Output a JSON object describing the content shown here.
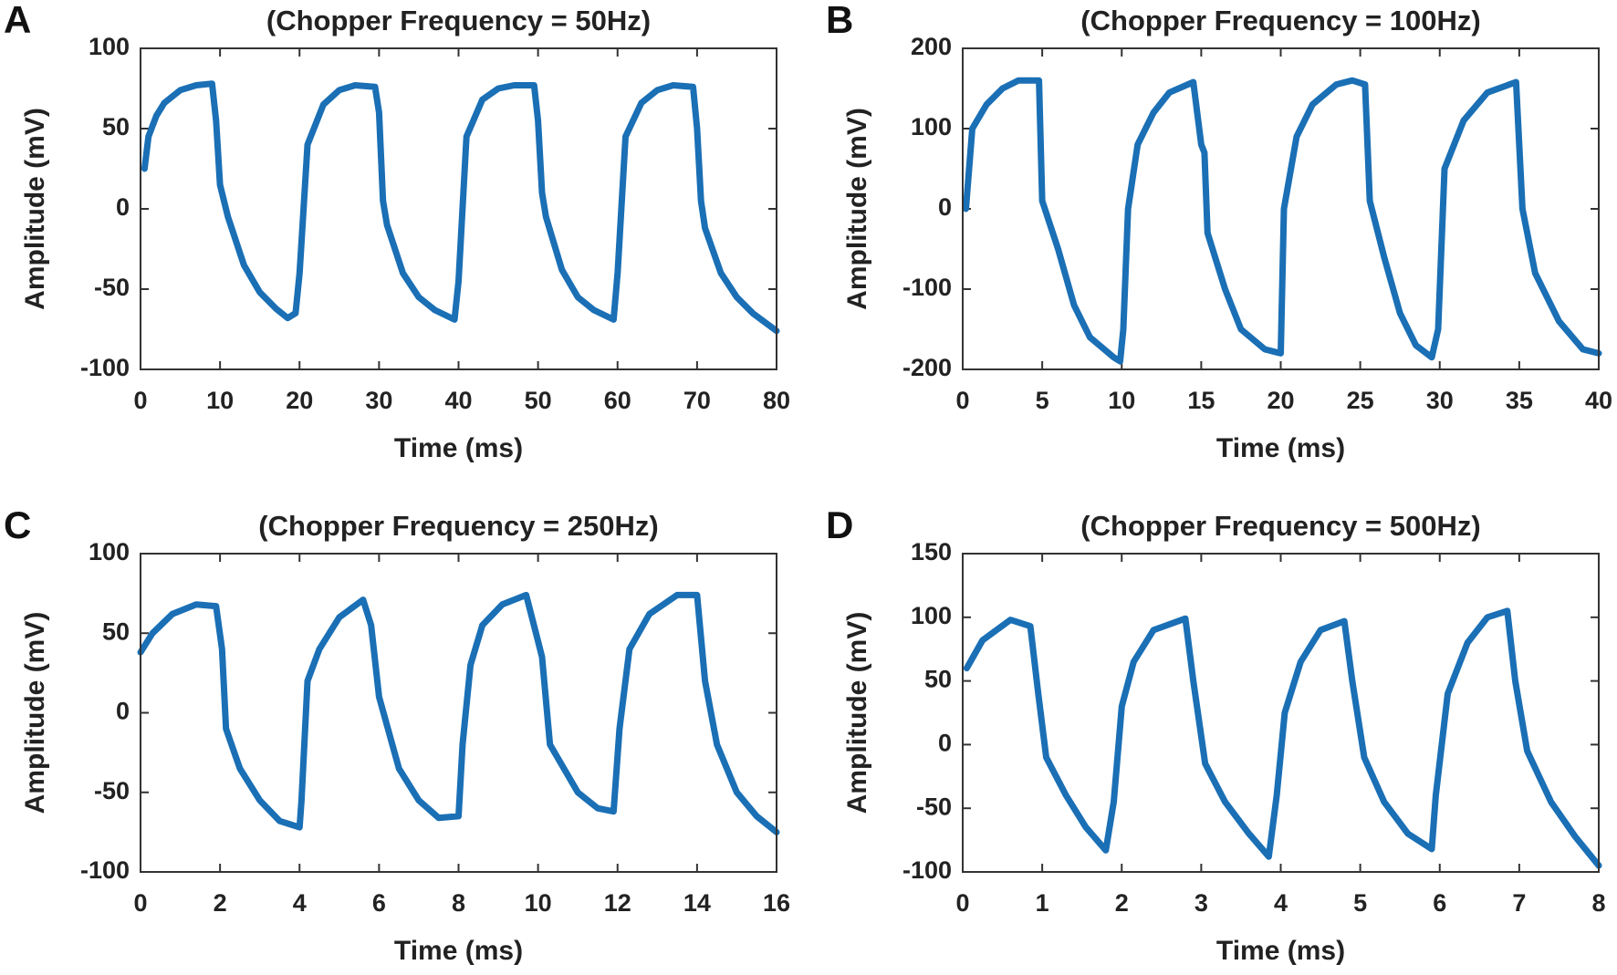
{
  "chart_data": [
    {
      "type": "line",
      "panel": "A",
      "title": "(Chopper Frequency = 50Hz)",
      "xlabel": "Time (ms)",
      "ylabel": "Amplitude (mV)",
      "color": "#1a6fb5",
      "x": [
        0.5,
        1,
        2,
        3,
        5,
        7,
        9,
        9.5,
        10,
        11,
        13,
        15,
        17,
        18.5,
        19.5,
        20,
        21,
        23,
        25,
        27,
        29.5,
        30,
        30.5,
        31,
        33,
        35,
        37,
        39.5,
        40,
        41,
        43,
        45,
        47,
        49.5,
        50,
        50.5,
        51,
        53,
        55,
        57,
        59.5,
        60,
        61,
        63,
        65,
        67,
        69.5,
        70,
        70.5,
        71,
        73,
        75,
        77,
        80
      ],
      "values": [
        25,
        45,
        58,
        66,
        74,
        77,
        78,
        55,
        15,
        -5,
        -35,
        -52,
        -62,
        -68,
        -65,
        -40,
        40,
        65,
        74,
        77,
        76,
        60,
        5,
        -10,
        -40,
        -55,
        -63,
        -69,
        -45,
        45,
        68,
        75,
        77,
        77,
        55,
        10,
        -5,
        -38,
        -55,
        -63,
        -69,
        -40,
        45,
        66,
        74,
        77,
        76,
        50,
        5,
        -12,
        -40,
        -55,
        -65,
        -76
      ],
      "xlim": [
        0,
        80
      ],
      "ylim": [
        -100,
        100
      ],
      "xticks": [
        0,
        10,
        20,
        30,
        40,
        50,
        60,
        70,
        80
      ],
      "yticks": [
        -100,
        -50,
        0,
        50,
        100
      ]
    },
    {
      "type": "line",
      "panel": "B",
      "title": "(Chopper Frequency = 100Hz)",
      "xlabel": "Time (ms)",
      "ylabel": "Amplitude (mV)",
      "color": "#1a6fb5",
      "x": [
        0.2,
        0.6,
        1.5,
        2.5,
        3.5,
        4.8,
        5,
        6,
        7,
        8,
        9.5,
        9.9,
        10.1,
        10.4,
        11,
        12,
        13,
        14.5,
        15,
        15.2,
        15.4,
        16.5,
        17.5,
        19,
        20,
        20.2,
        21,
        22,
        23.5,
        24.5,
        25.3,
        25.6,
        26.5,
        27.5,
        28.5,
        29.5,
        29.9,
        30.3,
        31.5,
        33,
        34.8,
        35.2,
        36,
        37.5,
        39,
        40
      ],
      "values": [
        0,
        100,
        130,
        150,
        160,
        160,
        10,
        -50,
        -120,
        -160,
        -185,
        -190,
        -150,
        0,
        80,
        120,
        145,
        158,
        80,
        70,
        -30,
        -100,
        -150,
        -175,
        -180,
        0,
        90,
        130,
        155,
        160,
        155,
        10,
        -60,
        -130,
        -170,
        -185,
        -150,
        50,
        110,
        145,
        158,
        0,
        -80,
        -140,
        -175,
        -180
      ],
      "xlim": [
        0,
        40
      ],
      "ylim": [
        -200,
        200
      ],
      "xticks": [
        0,
        5,
        10,
        15,
        20,
        25,
        30,
        35,
        40
      ],
      "yticks": [
        -200,
        -100,
        0,
        100,
        200
      ]
    },
    {
      "type": "line",
      "panel": "C",
      "title": "(Chopper Frequency = 250Hz)",
      "xlabel": "Time (ms)",
      "ylabel": "Amplitude (mV)",
      "color": "#1a6fb5",
      "x": [
        0,
        0.3,
        0.8,
        1.4,
        1.9,
        2.05,
        2.15,
        2.5,
        3,
        3.5,
        4,
        4.05,
        4.2,
        4.5,
        5,
        5.6,
        5.8,
        6,
        6.5,
        7,
        7.5,
        8,
        8.1,
        8.3,
        8.6,
        9.1,
        9.7,
        10,
        10.1,
        10.3,
        11,
        11.5,
        11.9,
        12.05,
        12.3,
        12.8,
        13.5,
        14,
        14.2,
        14.5,
        15,
        15.5,
        16
      ],
      "values": [
        38,
        50,
        62,
        68,
        67,
        40,
        -10,
        -35,
        -55,
        -68,
        -72,
        -55,
        20,
        40,
        60,
        71,
        55,
        10,
        -35,
        -55,
        -66,
        -65,
        -20,
        30,
        55,
        68,
        74,
        45,
        35,
        -20,
        -50,
        -60,
        -62,
        -10,
        40,
        62,
        74,
        74,
        20,
        -20,
        -50,
        -65,
        -75
      ],
      "xlim": [
        0,
        16
      ],
      "ylim": [
        -100,
        100
      ],
      "xticks": [
        0,
        2,
        4,
        6,
        8,
        10,
        12,
        14,
        16
      ],
      "yticks": [
        -100,
        -50,
        0,
        50,
        100
      ]
    },
    {
      "type": "line",
      "panel": "D",
      "title": "(Chopper Frequency = 500Hz)",
      "xlabel": "Time (ms)",
      "ylabel": "Amplitude (mV)",
      "color": "#1a6fb5",
      "x": [
        0.05,
        0.25,
        0.6,
        0.85,
        0.95,
        1.05,
        1.3,
        1.55,
        1.8,
        1.9,
        2.0,
        2.15,
        2.4,
        2.8,
        2.9,
        3.05,
        3.3,
        3.6,
        3.85,
        3.95,
        4.05,
        4.25,
        4.5,
        4.8,
        4.9,
        5.05,
        5.3,
        5.6,
        5.9,
        5.95,
        6.1,
        6.35,
        6.6,
        6.85,
        6.95,
        7.1,
        7.4,
        7.7,
        8
      ],
      "values": [
        60,
        82,
        98,
        93,
        40,
        -10,
        -40,
        -65,
        -83,
        -45,
        30,
        65,
        90,
        99,
        50,
        -15,
        -45,
        -70,
        -88,
        -40,
        25,
        65,
        90,
        97,
        50,
        -10,
        -45,
        -70,
        -82,
        -40,
        40,
        80,
        100,
        105,
        50,
        -5,
        -45,
        -72,
        -95
      ],
      "xlim": [
        0,
        8
      ],
      "ylim": [
        -100,
        150
      ],
      "xticks": [
        0,
        1,
        2,
        3,
        4,
        5,
        6,
        7,
        8
      ],
      "yticks": [
        -100,
        -50,
        0,
        50,
        100,
        150
      ]
    }
  ]
}
